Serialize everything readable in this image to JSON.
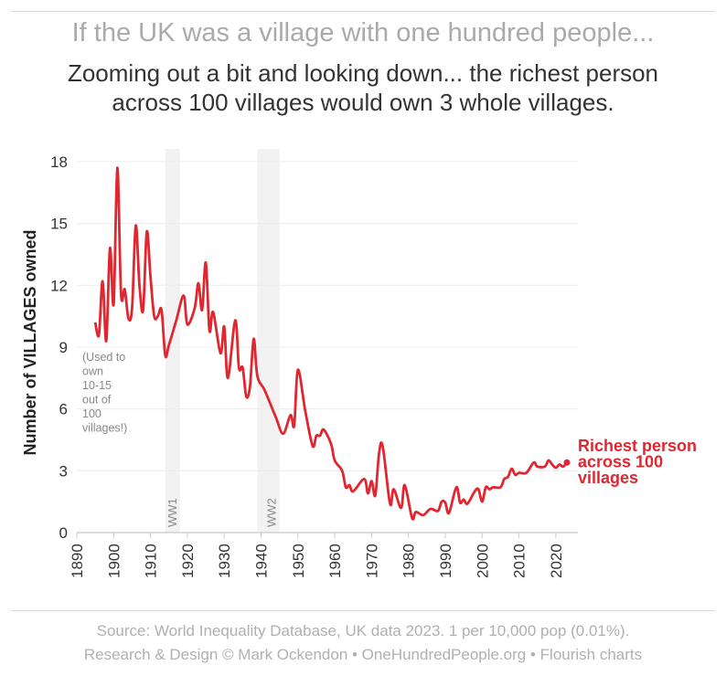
{
  "header": {
    "title": "If the UK was a village with one hundred people...",
    "subtitle_line1": "Zooming out a bit and looking down... the richest person",
    "subtitle_line2": "across 100 villages would own 3 whole villages."
  },
  "chart_data": {
    "type": "line",
    "title": "",
    "xlabel": "",
    "ylabel": "Number of VILLAGES owned",
    "xlim": [
      1890,
      2026
    ],
    "ylim": [
      0,
      18
    ],
    "x_ticks": [
      1890,
      1900,
      1910,
      1920,
      1930,
      1940,
      1950,
      1960,
      1970,
      1980,
      1990,
      2000,
      2010,
      2020
    ],
    "y_ticks": [
      0,
      3,
      6,
      9,
      12,
      15,
      18
    ],
    "grid": "horizontal",
    "line_color": "#e0262f",
    "shaded_periods": [
      {
        "label": "WW1",
        "start": 1914,
        "end": 1918
      },
      {
        "label": "WW2",
        "start": 1939,
        "end": 1945
      }
    ],
    "annotations": [
      {
        "text_lines": [
          "(Used to",
          "own",
          "10-15",
          "out of",
          "100",
          "villages!)"
        ]
      }
    ],
    "end_label": [
      "Richest person",
      "across 100",
      "villages"
    ],
    "series": [
      {
        "x": [
          1895,
          1896,
          1897,
          1898,
          1899,
          1900,
          1901,
          1902,
          1903,
          1904,
          1905,
          1906,
          1907,
          1908,
          1909,
          1910,
          1911,
          1912,
          1913,
          1914,
          1915,
          1917,
          1919,
          1920,
          1922,
          1923,
          1924,
          1925,
          1926,
          1927,
          1929,
          1930,
          1931,
          1933,
          1934,
          1935,
          1936,
          1937,
          1938,
          1939,
          1941,
          1944,
          1946,
          1948,
          1949,
          1950,
          1952,
          1954,
          1955,
          1956,
          1957,
          1959,
          1960,
          1962,
          1963,
          1964,
          1965,
          1968,
          1969,
          1970,
          1971,
          1972,
          1973,
          1975,
          1976,
          1978,
          1979,
          1981,
          1982,
          1984,
          1986,
          1988,
          1989,
          1990,
          1991,
          1993,
          1994,
          1995,
          1996,
          1998,
          1999,
          2000,
          2001,
          2002,
          2003,
          2005,
          2006,
          2007,
          2008,
          2009,
          2010,
          2012,
          2014,
          2015,
          2017,
          2018,
          2019,
          2020,
          2021,
          2022,
          2023
        ],
        "y": [
          10.2,
          9.6,
          12.2,
          9.3,
          13.8,
          11.1,
          17.7,
          11.6,
          11.8,
          10.4,
          10.9,
          14.9,
          12.0,
          10.8,
          14.6,
          12.4,
          10.5,
          10.5,
          10.8,
          8.6,
          9.1,
          10.3,
          11.5,
          10.1,
          10.9,
          12.1,
          10.8,
          13.1,
          9.8,
          10.7,
          8.7,
          10.0,
          7.5,
          10.3,
          8.0,
          8.0,
          6.6,
          7.1,
          9.4,
          7.6,
          6.9,
          5.6,
          4.8,
          5.7,
          5.2,
          7.9,
          5.9,
          4.2,
          4.7,
          4.7,
          5.0,
          4.3,
          3.5,
          3.0,
          2.2,
          2.3,
          2.0,
          2.6,
          1.9,
          2.5,
          1.8,
          3.8,
          4.2,
          1.4,
          2.1,
          1.2,
          2.3,
          0.7,
          1.0,
          0.85,
          1.15,
          1.05,
          1.5,
          1.45,
          0.95,
          2.2,
          1.45,
          1.6,
          1.4,
          2.0,
          2.1,
          1.5,
          2.2,
          2.1,
          2.2,
          2.2,
          2.6,
          2.7,
          3.1,
          2.8,
          2.9,
          2.9,
          3.4,
          3.2,
          3.2,
          3.5,
          3.3,
          3.15,
          3.3,
          3.2,
          3.4
        ]
      }
    ]
  },
  "footer": {
    "line1": "Source: World Inequality Database, UK data 2023. 1 per 10,000 pop (0.01%).",
    "line2": "Research & Design © Mark Ockendon • OneHundredPeople.org • Flourish charts"
  }
}
